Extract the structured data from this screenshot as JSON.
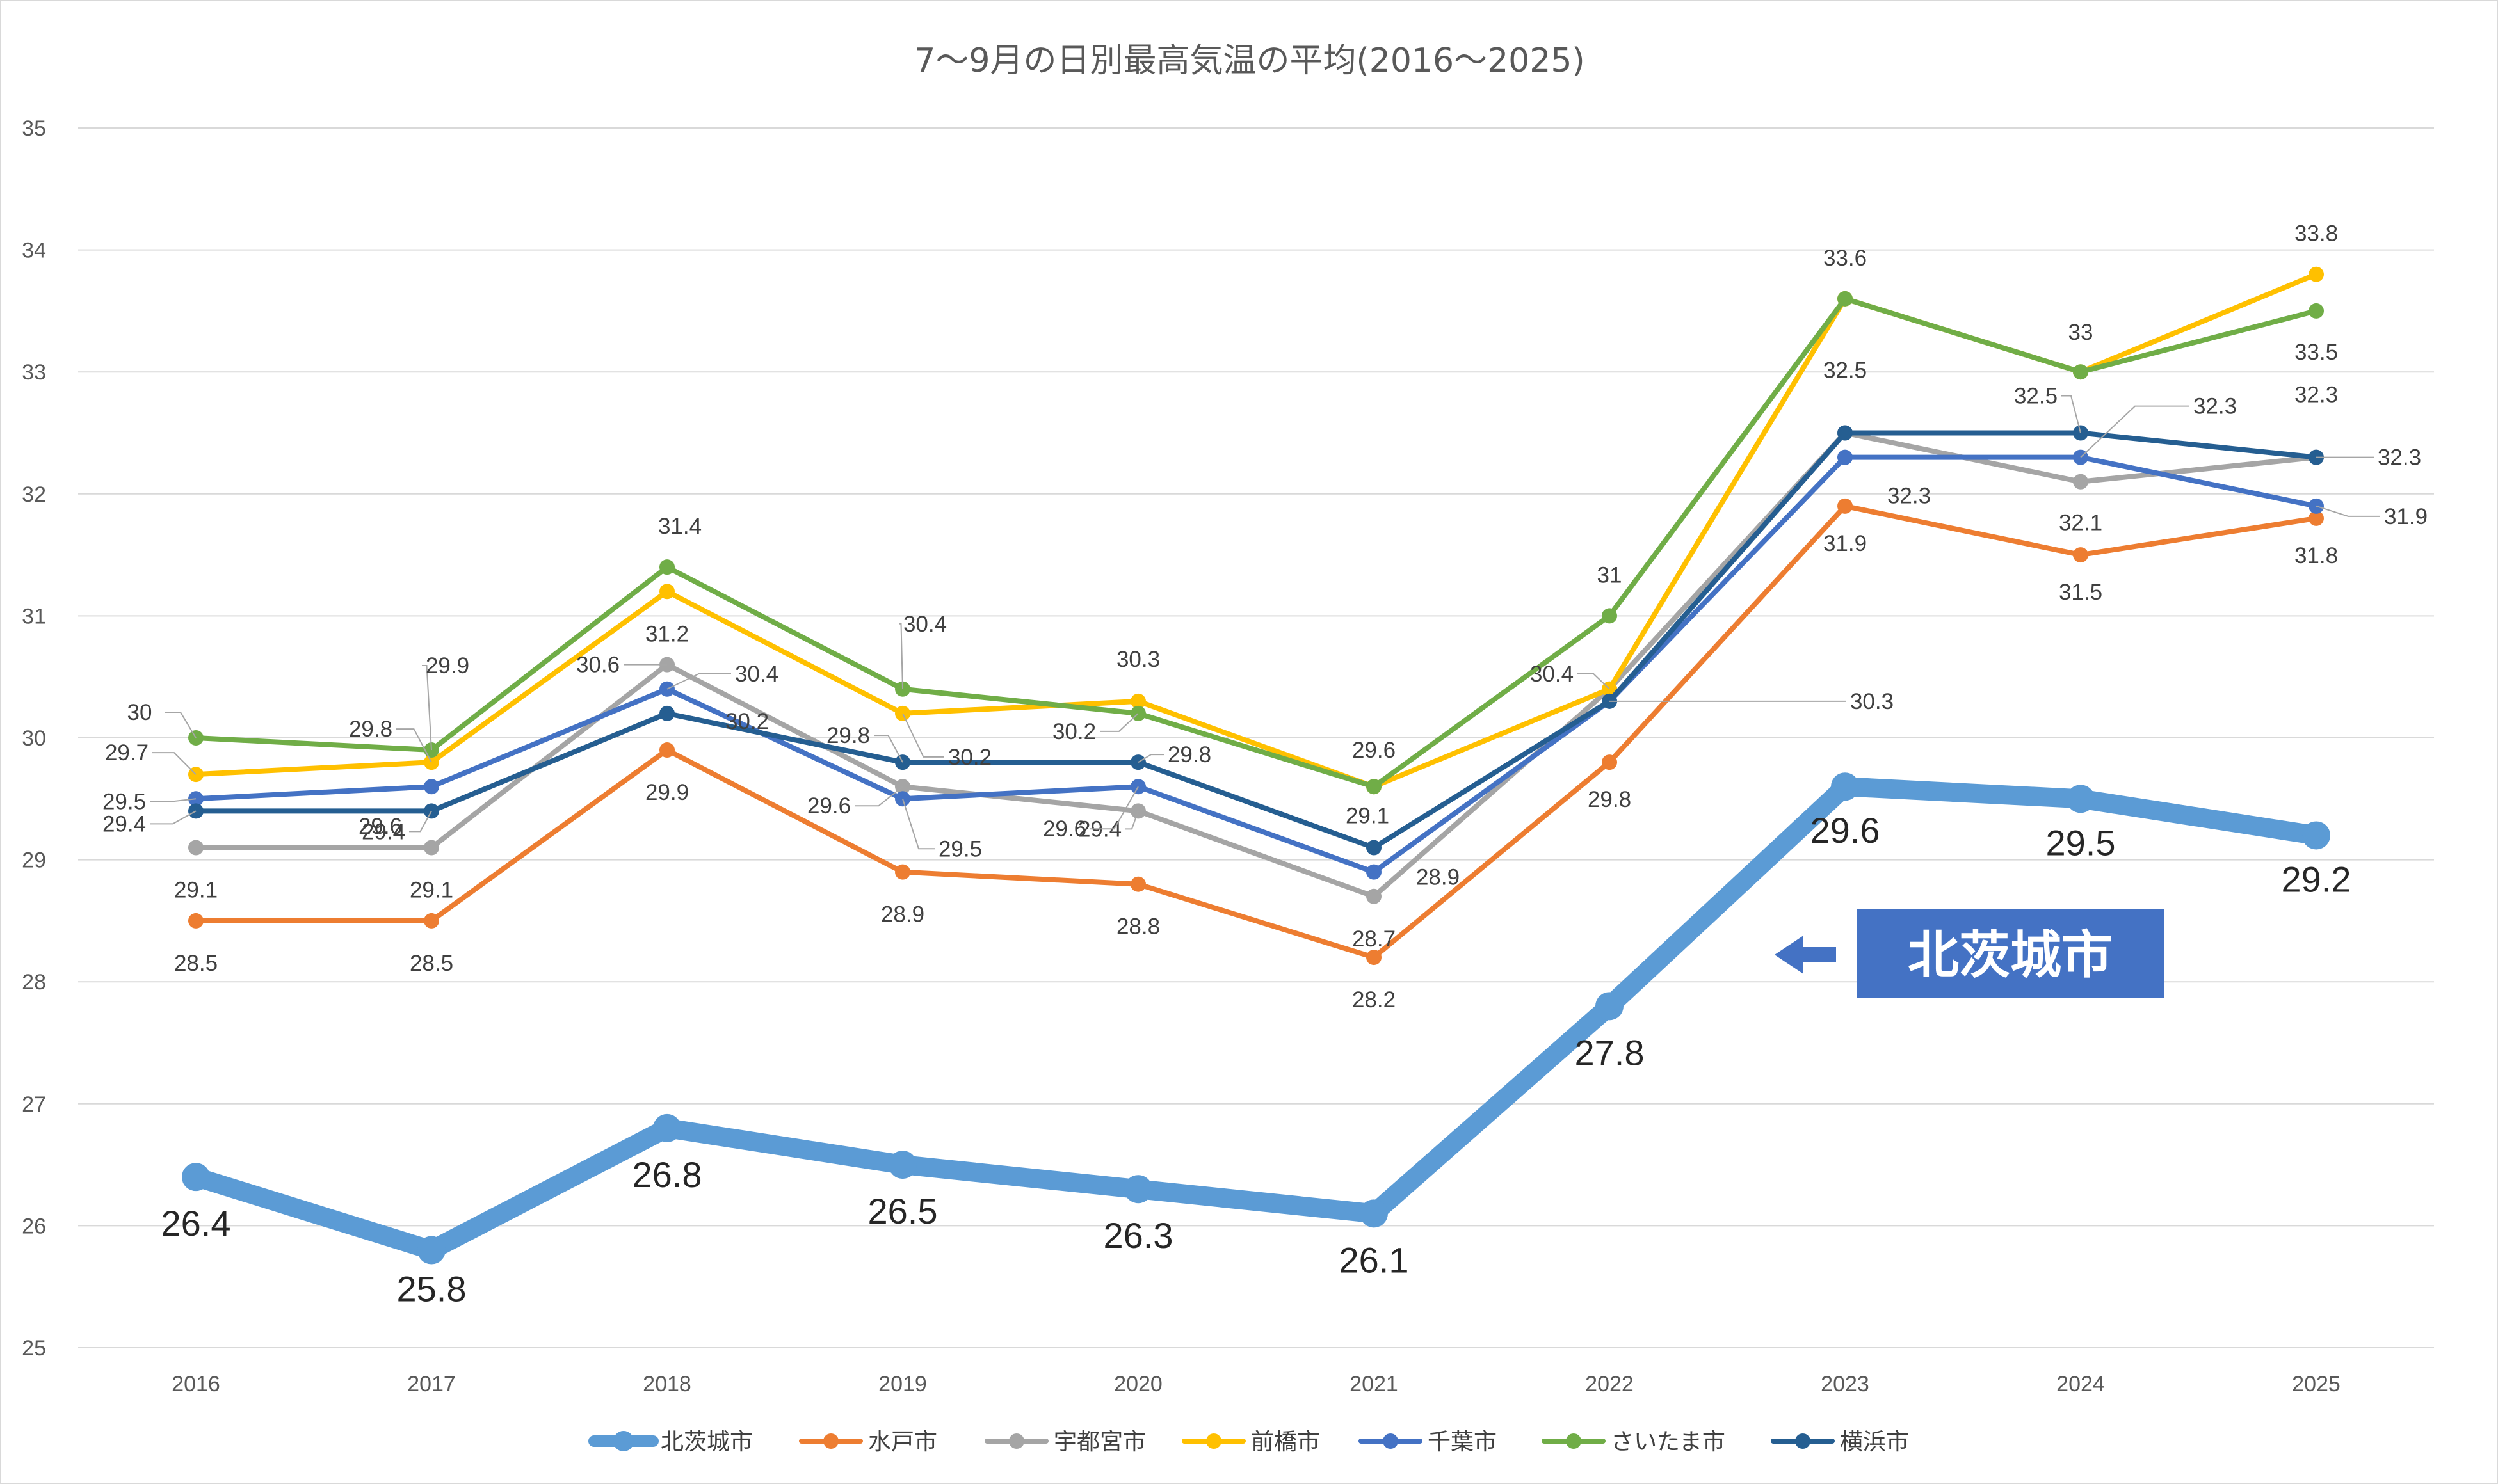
{
  "chart_data": {
    "type": "line",
    "title": "7〜9月の日別最高気温の平均(2016〜2025)",
    "xlabel": "",
    "ylabel": "",
    "ylim": [
      25,
      35
    ],
    "yticks": [
      25,
      26,
      27,
      28,
      29,
      30,
      31,
      32,
      33,
      34,
      35
    ],
    "categories": [
      "2016",
      "2017",
      "2018",
      "2019",
      "2020",
      "2021",
      "2022",
      "2023",
      "2024",
      "2025"
    ],
    "grid": true,
    "legend_position": "bottom",
    "series": [
      {
        "name": "北茨城市",
        "color": "#5b9bd5",
        "emphasis": true,
        "values": [
          26.4,
          25.8,
          26.8,
          26.5,
          26.3,
          26.1,
          27.8,
          29.6,
          29.5,
          29.2
        ],
        "labels": [
          "26.4",
          "25.8",
          "26.8",
          "26.5",
          "26.3",
          "26.1",
          "27.8",
          "29.6",
          "29.5",
          "29.2"
        ]
      },
      {
        "name": "水戸市",
        "color": "#ed7d31",
        "values": [
          28.5,
          28.5,
          29.9,
          28.9,
          28.8,
          28.2,
          29.8,
          31.9,
          31.5,
          31.8
        ],
        "labels": [
          "28.5",
          "28.5",
          "29.9",
          "28.9",
          "28.8",
          "28.2",
          "29.8",
          "31.9",
          "31.5",
          "31.8"
        ]
      },
      {
        "name": "宇都宮市",
        "color": "#a5a5a5",
        "values": [
          29.1,
          29.1,
          30.6,
          29.6,
          29.4,
          28.7,
          30.4,
          32.5,
          32.1,
          32.3
        ],
        "labels": [
          "29.1",
          "29.1",
          "30.6",
          "29.6",
          "29.4",
          "28.7",
          "30.4",
          "32.5",
          "32.1",
          "32.3"
        ]
      },
      {
        "name": "前橋市",
        "color": "#ffc000",
        "values": [
          29.7,
          29.8,
          31.2,
          30.2,
          30.3,
          29.6,
          30.4,
          33.6,
          33.0,
          33.8
        ],
        "labels": [
          "29.7",
          "29.8",
          "31.2",
          "30.2",
          "30.3",
          "",
          "",
          "",
          "",
          "33.8"
        ]
      },
      {
        "name": "千葉市",
        "color": "#4472c4",
        "values": [
          29.5,
          29.6,
          30.4,
          29.5,
          29.6,
          28.9,
          30.3,
          32.3,
          32.3,
          31.9
        ],
        "labels": [
          "29.5",
          "29.6",
          "30.4",
          "29.5",
          "29.6",
          "28.9",
          "",
          "32.3",
          "32.3",
          "31.9"
        ]
      },
      {
        "name": "さいたま市",
        "color": "#70ad47",
        "values": [
          30.0,
          29.9,
          31.4,
          30.4,
          30.2,
          29.6,
          31.0,
          33.6,
          33.0,
          33.5
        ],
        "labels": [
          "30",
          "29.9",
          "31.4",
          "30.4",
          "30.2",
          "29.6",
          "31",
          "33.6",
          "33",
          "33.5"
        ]
      },
      {
        "name": "横浜市",
        "color": "#255e91",
        "values": [
          29.4,
          29.4,
          30.2,
          29.8,
          29.8,
          29.1,
          30.3,
          32.5,
          32.5,
          32.3
        ],
        "labels": [
          "29.4",
          "29.4",
          "30.2",
          "29.8",
          "29.8",
          "29.1",
          "30.3",
          "32.5",
          "32.5",
          "32.3"
        ]
      }
    ],
    "annotation": {
      "text": "北茨城市",
      "color": "#4472c4",
      "points_to": "北茨城市"
    }
  }
}
